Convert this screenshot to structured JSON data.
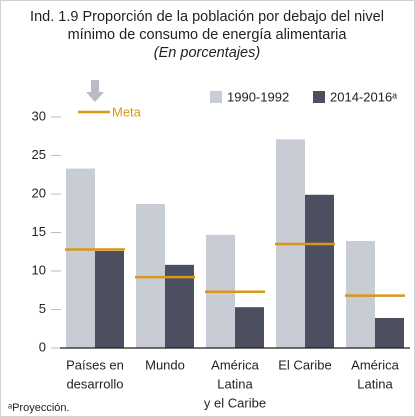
{
  "chart_data": {
    "type": "bar",
    "title": [
      "Ind. 1.9 Proporción de la población por debajo del nivel",
      "mínimo de consumo de energía alimentaria"
    ],
    "subtitle": "(En porcentajes)",
    "categories": [
      [
        "Países en",
        "desarrollo"
      ],
      [
        "Mundo"
      ],
      [
        "América",
        "Latina",
        "y el Caribe"
      ],
      [
        "El Caribe"
      ],
      [
        "América",
        "Latina"
      ]
    ],
    "series": [
      {
        "name": "1990-1992",
        "color": "#c8ccd5",
        "values": [
          23.3,
          18.7,
          14.7,
          27.1,
          13.9
        ]
      },
      {
        "name": "2014-2016ᵃ",
        "color": "#4b4f5f",
        "values": [
          12.6,
          10.8,
          5.3,
          19.9,
          3.9
        ]
      },
      {
        "name": "Meta",
        "color": "#d9961a",
        "style": "line",
        "values": [
          12.8,
          9.2,
          7.3,
          13.5,
          6.8
        ]
      }
    ],
    "ylim": [
      0,
      30
    ],
    "yticks": [
      0,
      5,
      10,
      15,
      20,
      25,
      30
    ],
    "footnote": "ᵃProyección."
  }
}
